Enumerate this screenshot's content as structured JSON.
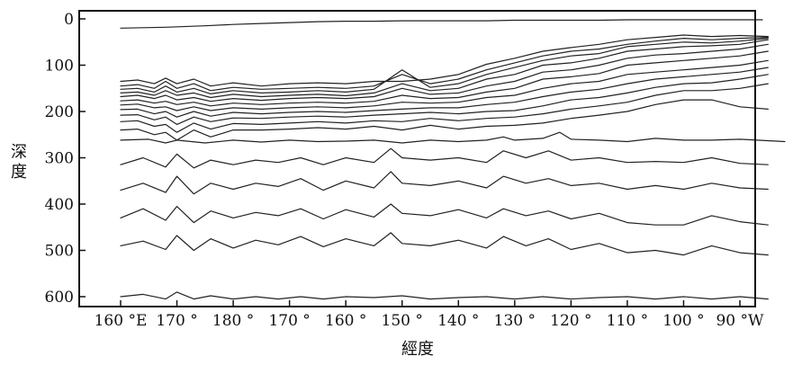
{
  "chart_data": {
    "type": "contour",
    "title": "",
    "xlabel": "經度",
    "ylabel": "深度",
    "x_tick_labels": [
      "160 °E",
      "170 °",
      "180 °",
      "170 °",
      "160 °",
      "150 °",
      "140 °",
      "130 °",
      "120 °",
      "110 °",
      "100 °",
      "90 °W"
    ],
    "x_ticks_deg_east": [
      160,
      170,
      180,
      190,
      200,
      210,
      220,
      230,
      240,
      250,
      260,
      270
    ],
    "xlim_deg_east": [
      152,
      278
    ],
    "y_tick_labels": [
      "0",
      "100",
      "200",
      "300",
      "400",
      "500",
      "600"
    ],
    "y_ticks": [
      0,
      100,
      200,
      300,
      400,
      500,
      600
    ],
    "ylim": [
      0,
      620
    ],
    "y_inverted": true,
    "grid": false,
    "contours": [
      {
        "x": [
          160,
          168,
          175,
          180,
          185,
          190,
          195,
          200,
          205,
          210,
          215,
          220,
          225,
          230,
          235,
          240,
          245,
          250,
          255,
          260,
          265,
          270,
          274
        ],
        "y": [
          20,
          18,
          15,
          12,
          10,
          8,
          6,
          5,
          5,
          4,
          4,
          4,
          4,
          3,
          3,
          3,
          3,
          2,
          2,
          2,
          2,
          2,
          2
        ]
      },
      {
        "x": [
          160,
          163,
          166,
          168,
          170,
          173,
          176,
          180,
          185,
          190,
          195,
          200,
          205,
          210,
          215,
          220,
          225,
          230,
          235,
          240,
          245,
          250,
          255,
          260,
          265,
          270,
          275
        ],
        "y": [
          135,
          132,
          140,
          128,
          140,
          130,
          145,
          138,
          145,
          140,
          138,
          140,
          135,
          135,
          130,
          120,
          98,
          85,
          70,
          62,
          55,
          45,
          40,
          35,
          38,
          36,
          38
        ]
      },
      {
        "x": [
          160,
          163,
          166,
          168,
          170,
          173,
          176,
          180,
          185,
          190,
          195,
          200,
          205,
          210,
          215,
          220,
          225,
          230,
          235,
          240,
          245,
          250,
          255,
          260,
          265,
          270,
          275
        ],
        "y": [
          145,
          142,
          150,
          135,
          150,
          140,
          155,
          148,
          152,
          150,
          148,
          150,
          145,
          120,
          140,
          130,
          110,
          95,
          80,
          70,
          65,
          55,
          48,
          42,
          45,
          42,
          40
        ]
      },
      {
        "x": [
          160,
          163,
          166,
          168,
          170,
          173,
          176,
          180,
          185,
          190,
          195,
          200,
          205,
          210,
          215,
          220,
          225,
          230,
          235,
          240,
          245,
          250,
          255,
          260,
          265,
          270,
          275
        ],
        "y": [
          152,
          150,
          158,
          145,
          158,
          150,
          162,
          155,
          160,
          158,
          155,
          158,
          152,
          110,
          148,
          140,
          120,
          105,
          90,
          80,
          75,
          60,
          55,
          50,
          52,
          48,
          42
        ]
      },
      {
        "x": [
          160,
          163,
          166,
          168,
          170,
          173,
          176,
          180,
          185,
          190,
          195,
          200,
          205,
          210,
          215,
          220,
          225,
          230,
          235,
          240,
          245,
          250,
          255,
          260,
          265,
          270,
          275
        ],
        "y": [
          160,
          158,
          165,
          155,
          165,
          160,
          170,
          163,
          168,
          165,
          163,
          166,
          160,
          140,
          155,
          150,
          130,
          120,
          100,
          95,
          85,
          70,
          65,
          60,
          58,
          55,
          45
        ]
      },
      {
        "x": [
          160,
          163,
          166,
          168,
          170,
          173,
          176,
          180,
          185,
          190,
          195,
          200,
          205,
          210,
          215,
          220,
          225,
          230,
          235,
          240,
          245,
          250,
          255,
          260,
          265,
          270,
          275
        ],
        "y": [
          168,
          165,
          172,
          165,
          175,
          170,
          178,
          172,
          176,
          172,
          170,
          172,
          168,
          150,
          163,
          160,
          145,
          135,
          115,
          110,
          100,
          85,
          78,
          75,
          70,
          65,
          55
        ]
      },
      {
        "x": [
          160,
          163,
          166,
          168,
          170,
          173,
          176,
          180,
          185,
          190,
          195,
          200,
          205,
          210,
          215,
          220,
          225,
          230,
          235,
          240,
          245,
          250,
          255,
          260,
          265,
          270,
          275
        ],
        "y": [
          177,
          175,
          182,
          178,
          185,
          180,
          188,
          182,
          185,
          182,
          180,
          182,
          178,
          165,
          172,
          170,
          158,
          150,
          130,
          125,
          118,
          100,
          95,
          90,
          85,
          80,
          70
        ]
      },
      {
        "x": [
          160,
          163,
          166,
          168,
          170,
          173,
          176,
          180,
          185,
          190,
          195,
          200,
          205,
          210,
          215,
          220,
          225,
          230,
          235,
          240,
          245,
          250,
          255,
          260,
          265,
          270,
          275
        ],
        "y": [
          186,
          184,
          192,
          190,
          198,
          190,
          198,
          192,
          195,
          192,
          190,
          192,
          188,
          180,
          182,
          180,
          170,
          165,
          150,
          140,
          135,
          120,
          115,
          110,
          105,
          100,
          90
        ]
      },
      {
        "x": [
          160,
          163,
          166,
          168,
          170,
          173,
          176,
          180,
          185,
          190,
          195,
          200,
          205,
          210,
          215,
          220,
          225,
          230,
          235,
          240,
          245,
          250,
          255,
          260,
          265,
          270,
          275
        ],
        "y": [
          196,
          195,
          205,
          200,
          212,
          200,
          210,
          202,
          205,
          202,
          200,
          202,
          198,
          195,
          192,
          192,
          185,
          180,
          168,
          158,
          152,
          140,
          130,
          125,
          120,
          115,
          105
        ]
      },
      {
        "x": [
          160,
          163,
          166,
          168,
          170,
          173,
          176,
          180,
          185,
          190,
          195,
          200,
          205,
          210,
          215,
          220,
          225,
          230,
          235,
          240,
          245,
          250,
          255,
          260,
          265,
          270,
          275
        ],
        "y": [
          208,
          207,
          218,
          212,
          228,
          212,
          222,
          214,
          215,
          212,
          210,
          212,
          208,
          205,
          202,
          205,
          200,
          198,
          188,
          175,
          170,
          160,
          148,
          140,
          138,
          130,
          120
        ]
      },
      {
        "x": [
          160,
          163,
          166,
          168,
          170,
          173,
          176,
          180,
          185,
          190,
          195,
          200,
          205,
          210,
          215,
          220,
          225,
          230,
          235,
          240,
          245,
          250,
          255,
          260,
          265,
          270,
          275
        ],
        "y": [
          222,
          220,
          232,
          228,
          245,
          225,
          238,
          226,
          228,
          225,
          222,
          225,
          220,
          222,
          215,
          220,
          215,
          212,
          205,
          195,
          188,
          180,
          165,
          155,
          155,
          150,
          140
        ]
      },
      {
        "x": [
          160,
          163,
          166,
          168,
          170,
          173,
          176,
          180,
          185,
          190,
          195,
          200,
          205,
          210,
          215,
          220,
          225,
          230,
          235,
          240,
          245,
          250,
          255,
          260,
          265,
          270,
          275
        ],
        "y": [
          240,
          238,
          250,
          245,
          262,
          240,
          255,
          240,
          240,
          238,
          235,
          238,
          232,
          240,
          230,
          238,
          232,
          230,
          225,
          215,
          208,
          200,
          185,
          175,
          175,
          190,
          195
        ]
      },
      {
        "x": [
          160,
          165,
          168,
          170,
          175,
          180,
          185,
          190,
          195,
          200,
          205,
          210,
          215,
          220,
          225,
          228,
          230,
          235,
          238,
          240,
          245,
          250,
          255,
          260,
          265,
          270,
          278
        ],
        "y": [
          262,
          260,
          268,
          262,
          268,
          262,
          266,
          262,
          265,
          264,
          262,
          268,
          262,
          265,
          262,
          255,
          262,
          258,
          245,
          260,
          262,
          265,
          258,
          262,
          262,
          260,
          265
        ]
      },
      {
        "x": [
          160,
          164,
          168,
          170,
          173,
          176,
          180,
          184,
          188,
          192,
          196,
          200,
          205,
          208,
          210,
          215,
          220,
          225,
          228,
          232,
          236,
          240,
          245,
          250,
          255,
          260,
          265,
          270,
          275
        ],
        "y": [
          315,
          300,
          320,
          292,
          322,
          305,
          315,
          305,
          310,
          300,
          315,
          300,
          310,
          280,
          300,
          305,
          300,
          310,
          285,
          300,
          285,
          305,
          300,
          310,
          308,
          310,
          300,
          312,
          315
        ]
      },
      {
        "x": [
          160,
          164,
          168,
          170,
          173,
          176,
          180,
          184,
          188,
          192,
          196,
          200,
          205,
          208,
          210,
          215,
          220,
          225,
          228,
          232,
          236,
          240,
          245,
          250,
          255,
          260,
          265,
          270,
          275
        ],
        "y": [
          370,
          355,
          375,
          340,
          378,
          355,
          368,
          355,
          362,
          345,
          370,
          350,
          365,
          330,
          355,
          360,
          350,
          365,
          340,
          355,
          345,
          360,
          355,
          368,
          360,
          368,
          355,
          365,
          368
        ]
      },
      {
        "x": [
          160,
          164,
          168,
          170,
          173,
          176,
          180,
          184,
          188,
          192,
          196,
          200,
          205,
          208,
          210,
          215,
          220,
          225,
          228,
          232,
          236,
          240,
          245,
          250,
          255,
          260,
          265,
          270,
          275
        ],
        "y": [
          430,
          410,
          435,
          405,
          440,
          415,
          430,
          418,
          425,
          410,
          432,
          412,
          428,
          400,
          420,
          425,
          412,
          430,
          410,
          425,
          415,
          432,
          420,
          440,
          445,
          445,
          425,
          438,
          445
        ]
      },
      {
        "x": [
          160,
          164,
          168,
          170,
          173,
          176,
          180,
          184,
          188,
          192,
          196,
          200,
          205,
          208,
          210,
          215,
          220,
          225,
          228,
          232,
          236,
          240,
          245,
          250,
          255,
          260,
          265,
          270,
          275
        ],
        "y": [
          490,
          480,
          498,
          468,
          500,
          475,
          495,
          478,
          488,
          470,
          492,
          475,
          490,
          462,
          485,
          490,
          478,
          495,
          470,
          490,
          475,
          498,
          485,
          505,
          500,
          510,
          490,
          505,
          510
        ]
      },
      {
        "x": [
          160,
          164,
          168,
          170,
          173,
          176,
          180,
          184,
          188,
          192,
          196,
          200,
          205,
          210,
          215,
          220,
          225,
          230,
          235,
          240,
          245,
          250,
          255,
          260,
          265,
          270,
          275
        ],
        "y": [
          600,
          595,
          605,
          590,
          605,
          598,
          605,
          600,
          605,
          600,
          605,
          600,
          602,
          598,
          605,
          602,
          600,
          605,
          600,
          605,
          602,
          600,
          605,
          600,
          605,
          600,
          605
        ]
      }
    ]
  }
}
